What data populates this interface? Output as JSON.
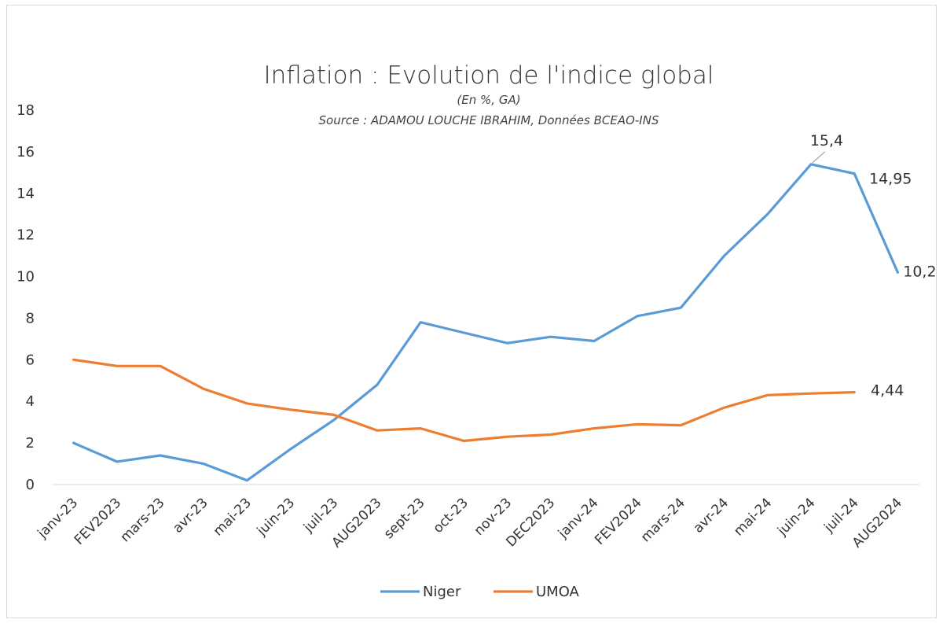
{
  "chart_data": {
    "type": "line",
    "title": "Inflation : Evolution de l'indice global",
    "subtitle": "(En %, GA)",
    "source": "Source : ADAMOU LOUCHE IBRAHIM, Données BCEAO-INS",
    "categories": [
      "janv-23",
      "FEV2023",
      "mars-23",
      "avr-23",
      "mai-23",
      "juin-23",
      "juil-23",
      "AUG2023",
      "sept-23",
      "oct-23",
      "nov-23",
      "DEC2023",
      "janv-24",
      "FEV2024",
      "mars-24",
      "avr-24",
      "mai-24",
      "juin-24",
      "juil-24",
      "AUG2024"
    ],
    "ylim": [
      0,
      18
    ],
    "yticks": [
      0,
      2,
      4,
      6,
      8,
      10,
      12,
      14,
      16,
      18
    ],
    "grid": false,
    "legend_position": "bottom",
    "series": [
      {
        "name": "Niger",
        "color": "#5B9BD5",
        "values": [
          2.0,
          1.1,
          1.4,
          1.0,
          0.2,
          1.7,
          3.1,
          4.8,
          7.8,
          7.3,
          6.8,
          7.1,
          6.9,
          8.1,
          8.5,
          11.0,
          13.0,
          15.4,
          14.95,
          10.2
        ]
      },
      {
        "name": "UMOA",
        "color": "#ED7D31",
        "values": [
          6.0,
          5.7,
          5.7,
          4.6,
          3.9,
          3.6,
          3.35,
          2.6,
          2.7,
          2.1,
          2.3,
          2.4,
          2.7,
          2.9,
          2.85,
          3.7,
          4.3,
          4.38,
          4.44,
          null
        ]
      }
    ],
    "data_labels": [
      {
        "series": "Niger",
        "index": 17,
        "text": "15,4"
      },
      {
        "series": "Niger",
        "index": 18,
        "text": "14,95"
      },
      {
        "series": "Niger",
        "index": 19,
        "text": "10,2"
      },
      {
        "series": "UMOA",
        "index": 18,
        "text": "4,44"
      }
    ]
  }
}
